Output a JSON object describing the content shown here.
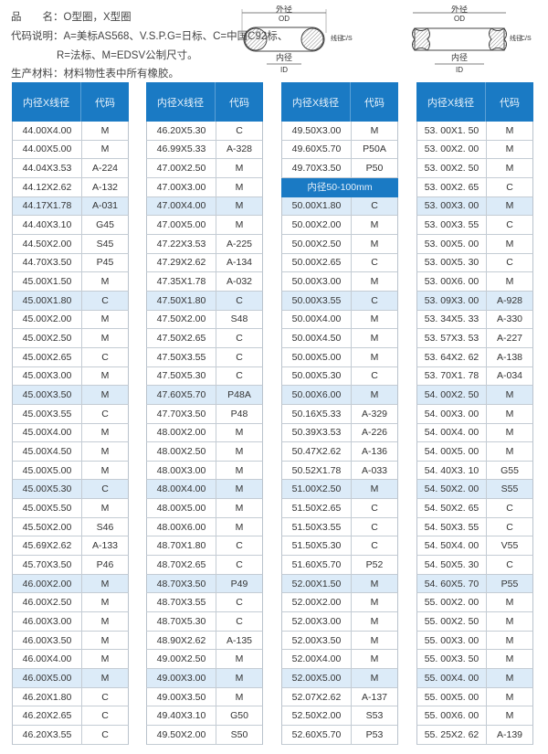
{
  "info": {
    "line1": "品　　名：O型圈，X型圈",
    "line2": "代码说明：A=美标AS568、V.S.P.G=日标、C=中国C92标、",
    "line3": "R=法标、M=EDSV公制尺寸。",
    "line4": "生产材料：材料物性表中所有橡胶。"
  },
  "diagram": {
    "od_cn": "外径",
    "od": "OD",
    "id_cn": "内径",
    "id": "ID",
    "cs_cn": "线径",
    "cs": "C/S"
  },
  "colors": {
    "header": "#1a7ac4",
    "highlight": "#dcebf8"
  },
  "table_header": {
    "size": "内径X线径",
    "code": "代码"
  },
  "tables": [
    [
      [
        "44.00X4.00",
        "M"
      ],
      [
        "44.00X5.00",
        "M"
      ],
      [
        "44.04X3.53",
        "A-224"
      ],
      [
        "44.12X2.62",
        "A-132"
      ],
      [
        "44.17X1.78",
        "A-031"
      ],
      [
        "44.40X3.10",
        "G45"
      ],
      [
        "44.50X2.00",
        "S45"
      ],
      [
        "44.70X3.50",
        "P45"
      ],
      [
        "45.00X1.50",
        "M"
      ],
      [
        "45.00X1.80",
        "C"
      ],
      [
        "45.00X2.00",
        "M"
      ],
      [
        "45.00X2.50",
        "M"
      ],
      [
        "45.00X2.65",
        "C"
      ],
      [
        "45.00X3.00",
        "M"
      ],
      [
        "45.00X3.50",
        "M"
      ],
      [
        "45.00X3.55",
        "C"
      ],
      [
        "45.00X4.00",
        "M"
      ],
      [
        "45.00X4.50",
        "M"
      ],
      [
        "45.00X5.00",
        "M"
      ],
      [
        "45.00X5.30",
        "C"
      ],
      [
        "45.00X5.50",
        "M"
      ],
      [
        "45.50X2.00",
        "S46"
      ],
      [
        "45.69X2.62",
        "A-133"
      ],
      [
        "45.70X3.50",
        "P46"
      ],
      [
        "46.00X2.00",
        "M"
      ],
      [
        "46.00X2.50",
        "M"
      ],
      [
        "46.00X3.00",
        "M"
      ],
      [
        "46.00X3.50",
        "M"
      ],
      [
        "46.00X4.00",
        "M"
      ],
      [
        "46.00X5.00",
        "M"
      ],
      [
        "46.20X1.80",
        "C"
      ],
      [
        "46.20X2.65",
        "C"
      ],
      [
        "46.20X3.55",
        "C"
      ]
    ],
    [
      [
        "46.20X5.30",
        "C"
      ],
      [
        "46.99X5.33",
        "A-328"
      ],
      [
        "47.00X2.50",
        "M"
      ],
      [
        "47.00X3.00",
        "M"
      ],
      [
        "47.00X4.00",
        "M"
      ],
      [
        "47.00X5.00",
        "M"
      ],
      [
        "47.22X3.53",
        "A-225"
      ],
      [
        "47.29X2.62",
        "A-134"
      ],
      [
        "47.35X1.78",
        "A-032"
      ],
      [
        "47.50X1.80",
        "C"
      ],
      [
        "47.50X2.00",
        "S48"
      ],
      [
        "47.50X2.65",
        "C"
      ],
      [
        "47.50X3.55",
        "C"
      ],
      [
        "47.50X5.30",
        "C"
      ],
      [
        "47.60X5.70",
        "P48A"
      ],
      [
        "47.70X3.50",
        "P48"
      ],
      [
        "48.00X2.00",
        "M"
      ],
      [
        "48.00X2.50",
        "M"
      ],
      [
        "48.00X3.00",
        "M"
      ],
      [
        "48.00X4.00",
        "M"
      ],
      [
        "48.00X5.00",
        "M"
      ],
      [
        "48.00X6.00",
        "M"
      ],
      [
        "48.70X1.80",
        "C"
      ],
      [
        "48.70X2.65",
        "C"
      ],
      [
        "48.70X3.50",
        "P49"
      ],
      [
        "48.70X3.55",
        "C"
      ],
      [
        "48.70X5.30",
        "C"
      ],
      [
        "48.90X2.62",
        "A-135"
      ],
      [
        "49.00X2.50",
        "M"
      ],
      [
        "49.00X3.00",
        "M"
      ],
      [
        "49.00X3.50",
        "M"
      ],
      [
        "49.40X3.10",
        "G50"
      ],
      [
        "49.50X2.00",
        "S50"
      ]
    ],
    [
      [
        "49.50X3.00",
        "M"
      ],
      [
        "49.60X5.70",
        "P50A"
      ],
      [
        "49.70X3.50",
        "P50"
      ],
      [
        "内径50-100mm"
      ],
      [
        "50.00X1.80",
        "C"
      ],
      [
        "50.00X2.00",
        "M"
      ],
      [
        "50.00X2.50",
        "M"
      ],
      [
        "50.00X2.65",
        "C"
      ],
      [
        "50.00X3.00",
        "M"
      ],
      [
        "50.00X3.55",
        "C"
      ],
      [
        "50.00X4.00",
        "M"
      ],
      [
        "50.00X4.50",
        "M"
      ],
      [
        "50.00X5.00",
        "M"
      ],
      [
        "50.00X5.30",
        "C"
      ],
      [
        "50.00X6.00",
        "M"
      ],
      [
        "50.16X5.33",
        "A-329"
      ],
      [
        "50.39X3.53",
        "A-226"
      ],
      [
        "50.47X2.62",
        "A-136"
      ],
      [
        "50.52X1.78",
        "A-033"
      ],
      [
        "51.00X2.50",
        "M"
      ],
      [
        "51.50X2.65",
        "C"
      ],
      [
        "51.50X3.55",
        "C"
      ],
      [
        "51.50X5.30",
        "C"
      ],
      [
        "51.60X5.70",
        "P52"
      ],
      [
        "52.00X1.50",
        "M"
      ],
      [
        "52.00X2.00",
        "M"
      ],
      [
        "52.00X3.00",
        "M"
      ],
      [
        "52.00X3.50",
        "M"
      ],
      [
        "52.00X4.00",
        "M"
      ],
      [
        "52.00X5.00",
        "M"
      ],
      [
        "52.07X2.62",
        "A-137"
      ],
      [
        "52.50X2.00",
        "S53"
      ],
      [
        "52.60X5.70",
        "P53"
      ]
    ],
    [
      [
        "53. 00X1. 50",
        "M"
      ],
      [
        "53. 00X2. 00",
        "M"
      ],
      [
        "53. 00X2. 50",
        "M"
      ],
      [
        "53. 00X2. 65",
        "C"
      ],
      [
        "53. 00X3. 00",
        "M"
      ],
      [
        "53. 00X3. 55",
        "C"
      ],
      [
        "53. 00X5. 00",
        "M"
      ],
      [
        "53. 00X5. 30",
        "C"
      ],
      [
        "53. 00X6. 00",
        "M"
      ],
      [
        "53. 09X3. 00",
        "A-928"
      ],
      [
        "53. 34X5. 33",
        "A-330"
      ],
      [
        "53. 57X3. 53",
        "A-227"
      ],
      [
        "53. 64X2. 62",
        "A-138"
      ],
      [
        "53. 70X1. 78",
        "A-034"
      ],
      [
        "54. 00X2. 50",
        "M"
      ],
      [
        "54. 00X3. 00",
        "M"
      ],
      [
        "54. 00X4. 00",
        "M"
      ],
      [
        "54. 00X5. 00",
        "M"
      ],
      [
        "54. 40X3. 10",
        "G55"
      ],
      [
        "54. 50X2. 00",
        "S55"
      ],
      [
        "54. 50X2. 65",
        "C"
      ],
      [
        "54. 50X3. 55",
        "C"
      ],
      [
        "54. 50X4. 00",
        "V55"
      ],
      [
        "54. 50X5. 30",
        "C"
      ],
      [
        "54. 60X5. 70",
        "P55"
      ],
      [
        "55. 00X2. 00",
        "M"
      ],
      [
        "55. 00X2. 50",
        "M"
      ],
      [
        "55. 00X3. 00",
        "M"
      ],
      [
        "55. 00X3. 50",
        "M"
      ],
      [
        "55. 00X4. 00",
        "M"
      ],
      [
        "55. 00X5. 00",
        "M"
      ],
      [
        "55. 00X6. 00",
        "M"
      ],
      [
        "55. 25X2. 62",
        "A-139"
      ]
    ]
  ]
}
